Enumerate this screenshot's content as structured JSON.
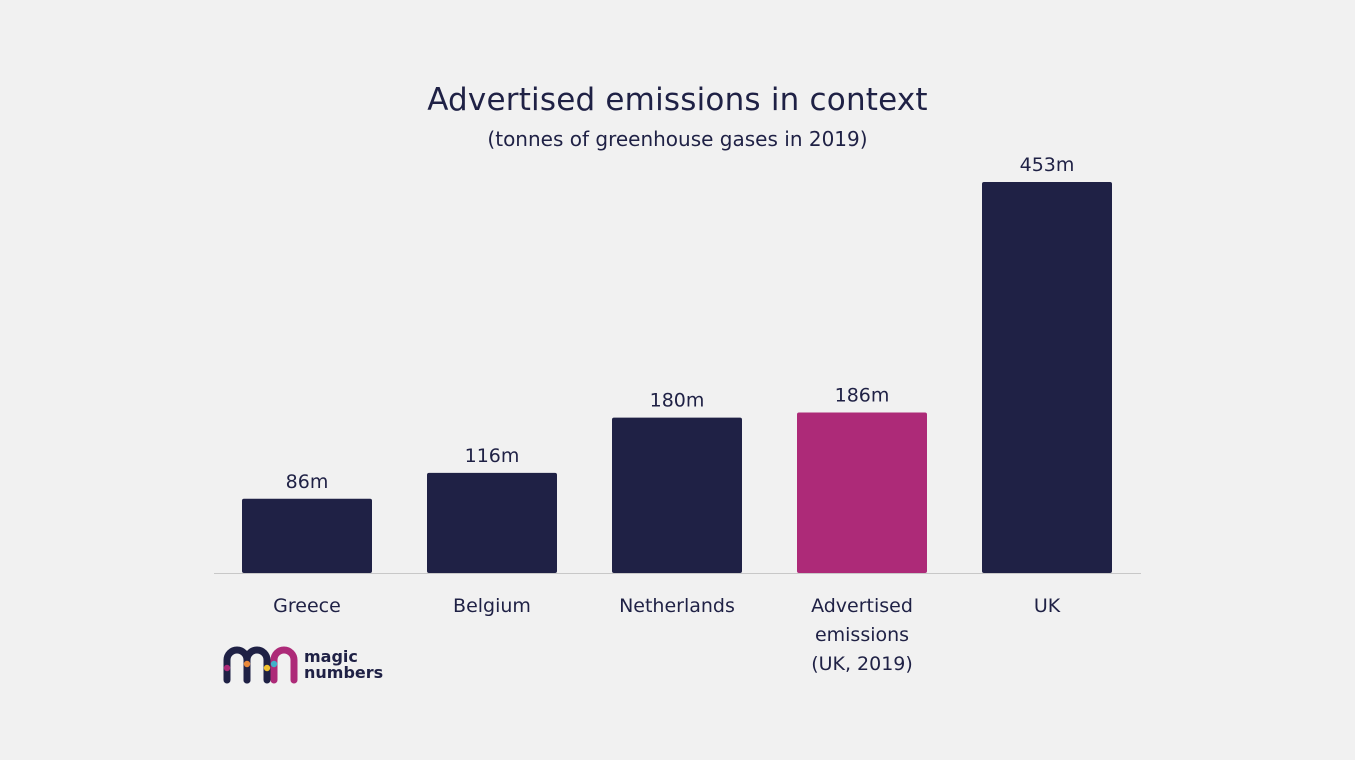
{
  "chart_data": {
    "type": "bar",
    "title": "Advertised emissions in context",
    "subtitle": "(tonnes of greenhouse gases in 2019)",
    "categories": [
      [
        "Greece"
      ],
      [
        "Belgium"
      ],
      [
        "Netherlands"
      ],
      [
        "Advertised",
        "emissions",
        "(UK, 2019)"
      ],
      [
        "UK"
      ]
    ],
    "values": [
      86,
      116,
      180,
      186,
      453
    ],
    "value_labels": [
      "86m",
      "116m",
      "180m",
      "186m",
      "453m"
    ],
    "units": "m",
    "ylim": [
      0,
      453
    ],
    "grid": false,
    "highlight_index": 3,
    "colors": {
      "default": "#1f2145",
      "highlight": "#ad2a78",
      "baseline": "#c8c8c8"
    }
  },
  "brand": {
    "line1": "magic",
    "line2": "numbers",
    "icon": "magic-numbers-logo-icon",
    "colors": [
      "#1f2145",
      "#ad2a78",
      "#e8883a",
      "#f2c12e",
      "#3fb1c9"
    ]
  }
}
